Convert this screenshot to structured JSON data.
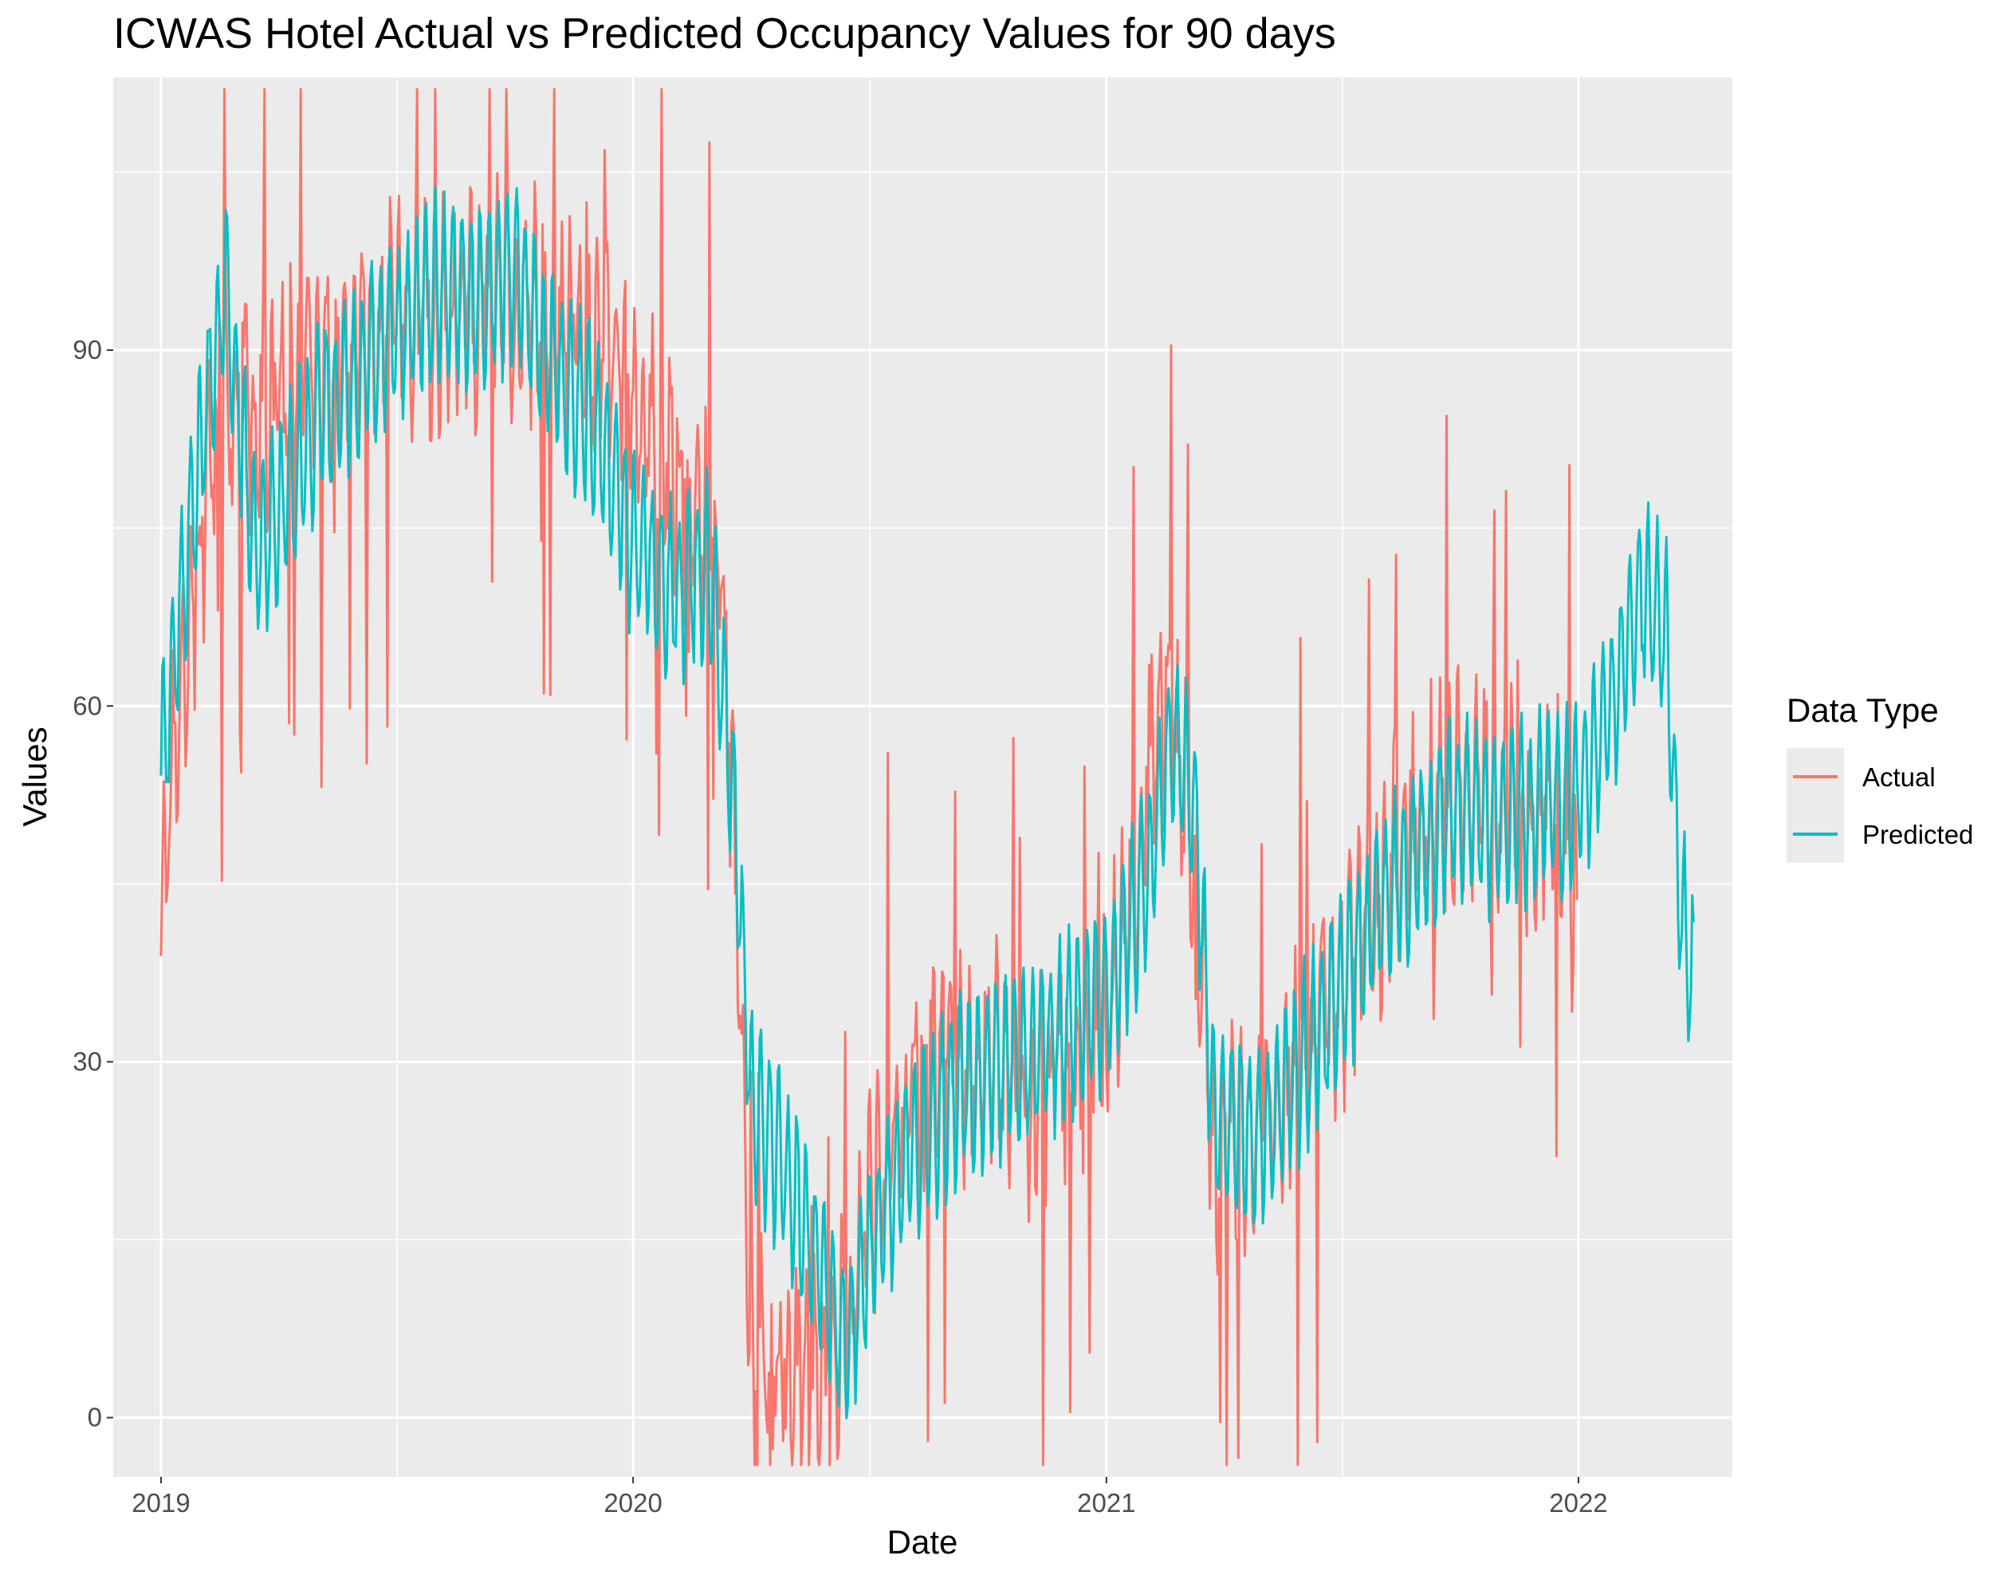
{
  "chart_data": {
    "type": "line",
    "title": "ICWAS Hotel Actual vs Predicted Occupancy Values for 90 days",
    "xlabel": "Date",
    "ylabel": "Values",
    "x_ticks": [
      "2019",
      "2020",
      "2021",
      "2022"
    ],
    "y_ticks": [
      0,
      30,
      60,
      90
    ],
    "xlim": [
      "2018-11-25",
      "2022-04-30"
    ],
    "ylim": [
      -5,
      113
    ],
    "grid": true,
    "legend": {
      "title": "Data Type",
      "position": "right"
    },
    "series": [
      {
        "name": "Actual",
        "color": "#F8766D",
        "x_start": "2019-01-01",
        "x_end": "2021-12-31",
        "points": [
          [
            "2019-01-01",
            42
          ],
          [
            "2019-01-08",
            55
          ],
          [
            "2019-01-15",
            62
          ],
          [
            "2019-02-01",
            75
          ],
          [
            "2019-02-15",
            85
          ],
          [
            "2019-03-01",
            88
          ],
          [
            "2019-03-15",
            83
          ],
          [
            "2019-04-01",
            87
          ],
          [
            "2019-05-01",
            89
          ],
          [
            "2019-06-01",
            90
          ],
          [
            "2019-07-01",
            92
          ],
          [
            "2019-08-01",
            93
          ],
          [
            "2019-09-01",
            94
          ],
          [
            "2019-10-01",
            95
          ],
          [
            "2019-11-01",
            92
          ],
          [
            "2019-12-01",
            90
          ],
          [
            "2019-12-20",
            88
          ],
          [
            "2020-01-10",
            85
          ],
          [
            "2020-02-01",
            80
          ],
          [
            "2020-02-20",
            76
          ],
          [
            "2020-03-10",
            72
          ],
          [
            "2020-03-22",
            40
          ],
          [
            "2020-04-01",
            5
          ],
          [
            "2020-05-01",
            4
          ],
          [
            "2020-06-01",
            5
          ],
          [
            "2020-06-20",
            9
          ],
          [
            "2020-07-01",
            18
          ],
          [
            "2020-08-01",
            27
          ],
          [
            "2020-09-01",
            31
          ],
          [
            "2020-10-01",
            30
          ],
          [
            "2020-11-01",
            27
          ],
          [
            "2020-12-01",
            30
          ],
          [
            "2021-01-01",
            32
          ],
          [
            "2021-02-01",
            55
          ],
          [
            "2021-02-20",
            60
          ],
          [
            "2021-03-10",
            48
          ],
          [
            "2021-03-25",
            22
          ],
          [
            "2021-04-15",
            24
          ],
          [
            "2021-05-15",
            27
          ],
          [
            "2021-06-15",
            33
          ],
          [
            "2021-07-15",
            40
          ],
          [
            "2021-08-15",
            48
          ],
          [
            "2021-09-15",
            52
          ],
          [
            "2021-10-15",
            54
          ],
          [
            "2021-11-15",
            51
          ],
          [
            "2021-12-15",
            52
          ],
          [
            "2021-12-31",
            42
          ]
        ]
      },
      {
        "name": "Predicted",
        "color": "#00BFC4",
        "x_start": "2019-01-01",
        "x_end": "2022-03-31",
        "points": [
          [
            "2019-01-01",
            55
          ],
          [
            "2019-02-01",
            82
          ],
          [
            "2019-02-20",
            95
          ],
          [
            "2019-03-15",
            72
          ],
          [
            "2019-04-01",
            76
          ],
          [
            "2019-05-01",
            84
          ],
          [
            "2019-06-01",
            88
          ],
          [
            "2019-07-01",
            92
          ],
          [
            "2019-08-01",
            95
          ],
          [
            "2019-09-01",
            94
          ],
          [
            "2019-10-01",
            97
          ],
          [
            "2019-11-01",
            88
          ],
          [
            "2019-12-01",
            84
          ],
          [
            "2020-01-01",
            74
          ],
          [
            "2020-02-01",
            70
          ],
          [
            "2020-03-01",
            72
          ],
          [
            "2020-03-20",
            50
          ],
          [
            "2020-04-01",
            27
          ],
          [
            "2020-05-01",
            20
          ],
          [
            "2020-06-01",
            10
          ],
          [
            "2020-06-15",
            6
          ],
          [
            "2020-07-01",
            14
          ],
          [
            "2020-08-01",
            22
          ],
          [
            "2020-09-01",
            27
          ],
          [
            "2020-10-01",
            29
          ],
          [
            "2020-11-01",
            30
          ],
          [
            "2020-12-01",
            33
          ],
          [
            "2021-01-01",
            36
          ],
          [
            "2021-02-01",
            45
          ],
          [
            "2021-02-20",
            58
          ],
          [
            "2021-03-10",
            52
          ],
          [
            "2021-03-25",
            25
          ],
          [
            "2021-05-01",
            24
          ],
          [
            "2021-06-01",
            30
          ],
          [
            "2021-07-01",
            36
          ],
          [
            "2021-08-01",
            43
          ],
          [
            "2021-09-01",
            48
          ],
          [
            "2021-10-01",
            52
          ],
          [
            "2021-11-01",
            50
          ],
          [
            "2021-12-01",
            52
          ],
          [
            "2022-01-01",
            52
          ],
          [
            "2022-02-01",
            62
          ],
          [
            "2022-02-20",
            70
          ],
          [
            "2022-03-10",
            66
          ],
          [
            "2022-03-20",
            44
          ],
          [
            "2022-03-31",
            36
          ]
        ]
      }
    ]
  }
}
